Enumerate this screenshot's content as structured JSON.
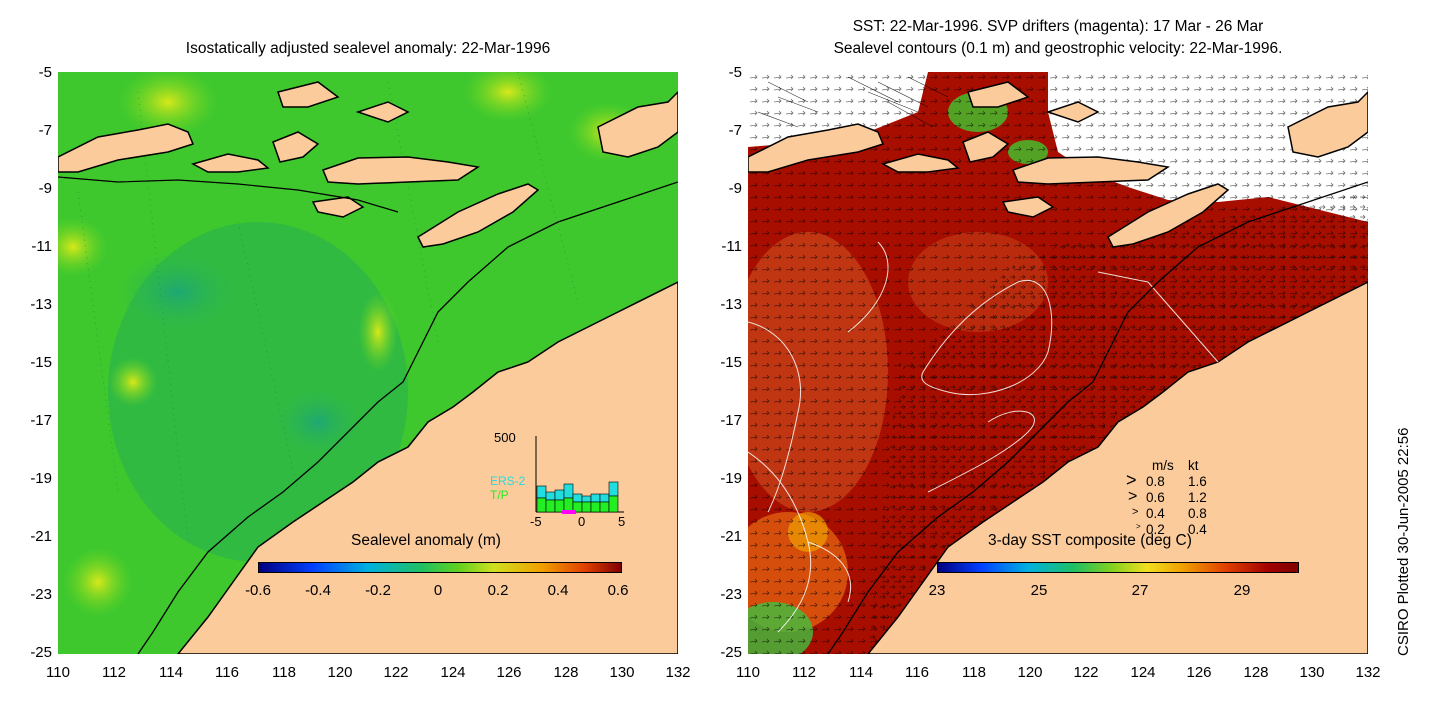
{
  "left_panel": {
    "title": "Isostatically adjusted sealevel anomaly: 22-Mar-1996",
    "colorbar": {
      "title": "Sealevel anomaly (m)",
      "labels": [
        "-0.6",
        "-0.4",
        "-0.2",
        "0",
        "0.2",
        "0.4",
        "0.6"
      ]
    },
    "histogram": {
      "ymax_label": "500",
      "series_labels": [
        "ERS-2",
        "T/P"
      ],
      "series_colors": [
        "#22dddd",
        "#22ee22"
      ],
      "x_labels": [
        "-5",
        "0",
        "5"
      ]
    }
  },
  "right_panel": {
    "title_line1": "SST: 22-Mar-1996. SVP drifters (magenta): 17 Mar - 26 Mar",
    "title_line2": "Sealevel contours (0.1 m) and geostrophic velocity: 22-Mar-1996.",
    "colorbar": {
      "title": "3-day SST composite (deg C)",
      "labels": [
        "23",
        "25",
        "27",
        "29"
      ]
    },
    "velocity_legend": {
      "header_ms": "m/s",
      "header_kt": "kt",
      "rows": [
        {
          "ms": "0.8",
          "kt": "1.6"
        },
        {
          "ms": "0.6",
          "kt": "1.2"
        },
        {
          "ms": "0.4",
          "kt": "0.8"
        },
        {
          "ms": "0.2",
          "kt": "0.4"
        }
      ]
    }
  },
  "axes": {
    "y_ticks": [
      "-5",
      "-7",
      "-9",
      "-11",
      "-13",
      "-15",
      "-17",
      "-19",
      "-21",
      "-23",
      "-25"
    ],
    "x_ticks": [
      "110",
      "112",
      "114",
      "116",
      "118",
      "120",
      "122",
      "124",
      "126",
      "128",
      "130",
      "132"
    ]
  },
  "credit": "CSIRO Plotted 30-Jun-2005 22:56",
  "colors": {
    "land": "#fbcb9c",
    "ocean_green": "#3ec82e",
    "sst_dark_red": "#a80e00",
    "sst_orange": "#c8441a"
  }
}
